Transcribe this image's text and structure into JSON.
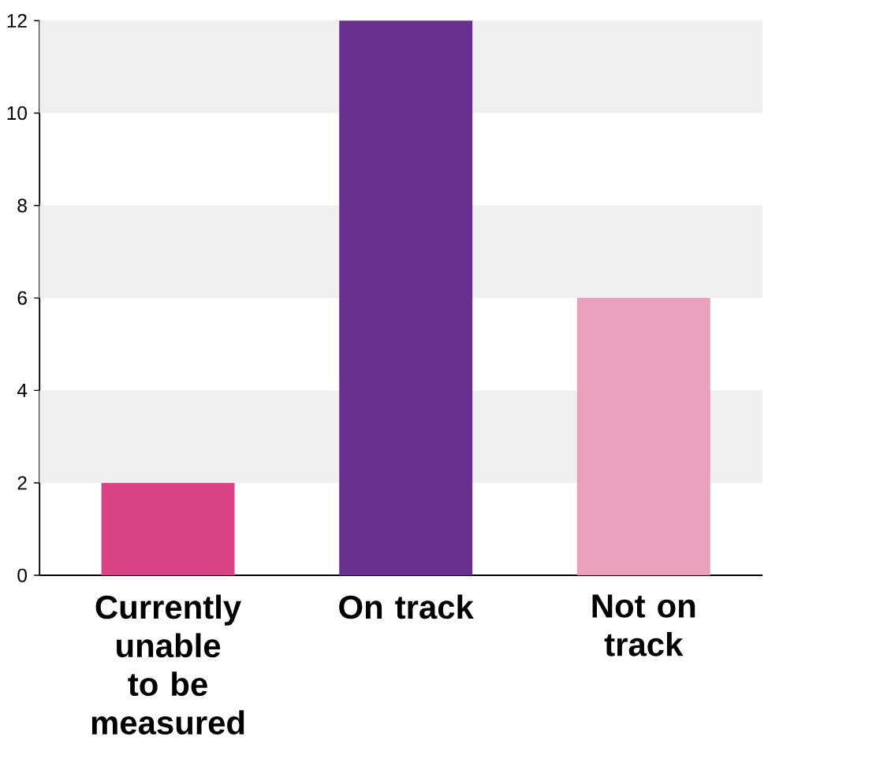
{
  "chart_data": {
    "type": "bar",
    "categories": [
      "Currently unable to be measured",
      "On track",
      "Not on track"
    ],
    "values": [
      2,
      12,
      6
    ],
    "colors": [
      "#d94386",
      "#66308c",
      "#e8a0bc"
    ],
    "ylim": [
      0,
      12
    ],
    "yticks": [
      0,
      2,
      4,
      6,
      8,
      10,
      12
    ],
    "grid": false,
    "bands": [
      {
        "axis": "y",
        "from": 2,
        "to": 4,
        "color": "#efefef"
      },
      {
        "axis": "y",
        "from": 6,
        "to": 8,
        "color": "#efefef"
      },
      {
        "axis": "y",
        "from": 10,
        "to": 12,
        "color": "#efefef"
      }
    ]
  }
}
